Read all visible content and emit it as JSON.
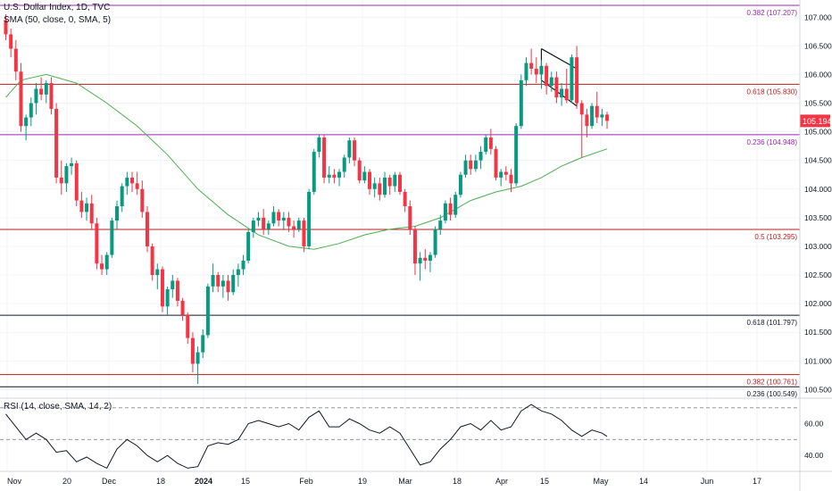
{
  "legend": {
    "symbol_line": "U.S. Dollar Index, 1D, TVC",
    "sma_line": "SMA (50, close, 0, SMA, 5)",
    "rsi_line": "RSI (14, close, SMA, 14, 2)"
  },
  "price_axis": {
    "ticks": [
      "107.000",
      "106.500",
      "106.000",
      "105.500",
      "105.000",
      "104.500",
      "104.000",
      "103.500",
      "103.000",
      "102.500",
      "102.000",
      "101.500",
      "101.000",
      "100.500"
    ],
    "current_price": "105.194",
    "current_price_color": "#f23645"
  },
  "rsi_axis": {
    "ticks": [
      "60.00",
      "40.00"
    ]
  },
  "time_axis": {
    "labels": [
      "Nov",
      "20",
      "Dec",
      "18",
      "2024",
      "15",
      "Feb",
      "19",
      "Mar",
      "18",
      "Apr",
      "15",
      "May",
      "14",
      "Jun",
      "17"
    ]
  },
  "fib_levels": [
    {
      "label": "0.382 (107.207)",
      "value": 107.207,
      "color": "#9c27b0"
    },
    {
      "label": "0.618 (105.830)",
      "value": 105.83,
      "color": "#b71c1c"
    },
    {
      "label": "0.236 (104.948)",
      "value": 104.948,
      "color": "#9c27b0"
    },
    {
      "label": "0.5 (103.295)",
      "value": 103.295,
      "color": "#b71c1c"
    },
    {
      "label": "0.618 (101.797)",
      "value": 101.797,
      "color": "#131722"
    },
    {
      "label": "0.382 (100.761)",
      "value": 100.761,
      "color": "#b71c1c"
    },
    {
      "label": "0.236 (100.549)",
      "value": 100.549,
      "color": "#131722"
    }
  ],
  "colors": {
    "up": "#089981",
    "down": "#f23645",
    "sma": "#4caf50",
    "rsi": "#131722"
  },
  "chart_data": {
    "type": "candlestick",
    "series_name": "U.S. Dollar Index, 1D, TVC",
    "x_start": "2023-10-30",
    "ohlc": [
      [
        106.95,
        107.05,
        106.6,
        106.7
      ],
      [
        106.7,
        106.8,
        106.3,
        106.45
      ],
      [
        106.45,
        106.6,
        105.9,
        106.05
      ],
      [
        106.05,
        106.2,
        105.0,
        105.1
      ],
      [
        105.1,
        105.3,
        104.85,
        105.25
      ],
      [
        105.25,
        105.6,
        105.1,
        105.5
      ],
      [
        105.5,
        105.85,
        105.3,
        105.75
      ],
      [
        105.75,
        105.95,
        105.55,
        105.65
      ],
      [
        105.65,
        105.9,
        105.5,
        105.85
      ],
      [
        105.85,
        105.95,
        105.3,
        105.4
      ],
      [
        105.4,
        105.5,
        104.1,
        104.2
      ],
      [
        104.2,
        104.5,
        103.9,
        104.1
      ],
      [
        104.1,
        104.45,
        103.95,
        104.4
      ],
      [
        104.4,
        104.55,
        104.25,
        104.45
      ],
      [
        104.45,
        104.5,
        103.7,
        103.8
      ],
      [
        103.8,
        103.95,
        103.5,
        103.6
      ],
      [
        103.6,
        103.85,
        103.45,
        103.75
      ],
      [
        103.75,
        103.9,
        103.3,
        103.4
      ],
      [
        103.4,
        103.5,
        102.6,
        102.7
      ],
      [
        102.7,
        102.85,
        102.5,
        102.6
      ],
      [
        102.6,
        102.9,
        102.5,
        102.85
      ],
      [
        102.85,
        103.5,
        102.8,
        103.45
      ],
      [
        103.45,
        103.8,
        103.3,
        103.7
      ],
      [
        103.7,
        104.1,
        103.6,
        104.05
      ],
      [
        104.05,
        104.3,
        103.9,
        104.2
      ],
      [
        104.2,
        104.3,
        103.95,
        104.1
      ],
      [
        104.1,
        104.3,
        103.9,
        104.0
      ],
      [
        104.0,
        104.15,
        103.5,
        103.6
      ],
      [
        103.6,
        103.7,
        102.9,
        103.0
      ],
      [
        103.0,
        103.05,
        102.4,
        102.5
      ],
      [
        102.5,
        102.7,
        102.25,
        102.6
      ],
      [
        102.6,
        102.65,
        101.85,
        101.95
      ],
      [
        101.95,
        102.3,
        101.8,
        102.25
      ],
      [
        102.25,
        102.5,
        102.1,
        102.4
      ],
      [
        102.4,
        102.45,
        101.95,
        102.05
      ],
      [
        102.05,
        102.1,
        101.7,
        101.8
      ],
      [
        101.8,
        101.85,
        101.3,
        101.4
      ],
      [
        101.4,
        101.5,
        100.8,
        100.95
      ],
      [
        100.95,
        101.25,
        100.6,
        101.15
      ],
      [
        101.15,
        101.55,
        101.05,
        101.45
      ],
      [
        101.45,
        102.35,
        101.4,
        102.3
      ],
      [
        102.3,
        102.7,
        102.2,
        102.5
      ],
      [
        102.5,
        102.55,
        102.2,
        102.3
      ],
      [
        102.3,
        102.5,
        102.1,
        102.4
      ],
      [
        102.4,
        102.5,
        102.05,
        102.2
      ],
      [
        102.2,
        102.6,
        102.15,
        102.5
      ],
      [
        102.5,
        102.7,
        102.3,
        102.6
      ],
      [
        102.6,
        102.85,
        102.5,
        102.75
      ],
      [
        102.75,
        103.3,
        102.7,
        103.25
      ],
      [
        103.25,
        103.5,
        103.15,
        103.45
      ],
      [
        103.45,
        103.6,
        103.35,
        103.5
      ],
      [
        103.5,
        103.65,
        103.2,
        103.3
      ],
      [
        103.3,
        103.45,
        103.2,
        103.4
      ],
      [
        103.4,
        103.7,
        103.35,
        103.6
      ],
      [
        103.6,
        103.65,
        103.35,
        103.45
      ],
      [
        103.45,
        103.6,
        103.3,
        103.5
      ],
      [
        103.5,
        103.6,
        103.25,
        103.35
      ],
      [
        103.35,
        103.45,
        103.15,
        103.3
      ],
      [
        103.3,
        103.5,
        103.25,
        103.45
      ],
      [
        103.45,
        103.5,
        102.9,
        103.0
      ],
      [
        103.0,
        104.0,
        102.95,
        103.95
      ],
      [
        103.95,
        104.7,
        103.9,
        104.65
      ],
      [
        104.65,
        104.95,
        104.55,
        104.9
      ],
      [
        104.9,
        104.95,
        104.1,
        104.2
      ],
      [
        104.2,
        104.4,
        104.1,
        104.25
      ],
      [
        104.25,
        104.35,
        104.1,
        104.2
      ],
      [
        104.2,
        104.35,
        104.05,
        104.3
      ],
      [
        104.3,
        104.6,
        104.2,
        104.55
      ],
      [
        104.55,
        104.9,
        104.45,
        104.85
      ],
      [
        104.85,
        104.9,
        104.4,
        104.5
      ],
      [
        104.5,
        104.55,
        104.1,
        104.15
      ],
      [
        104.15,
        104.4,
        104.1,
        104.3
      ],
      [
        104.3,
        104.35,
        103.9,
        104.0
      ],
      [
        104.0,
        104.2,
        103.85,
        104.1
      ],
      [
        104.1,
        104.2,
        103.8,
        103.9
      ],
      [
        103.9,
        104.3,
        103.85,
        104.2
      ],
      [
        104.2,
        104.25,
        103.9,
        104.05
      ],
      [
        104.05,
        104.3,
        103.95,
        104.25
      ],
      [
        104.25,
        104.3,
        103.9,
        103.95
      ],
      [
        103.95,
        104.0,
        103.6,
        103.7
      ],
      [
        103.7,
        103.8,
        103.2,
        103.3
      ],
      [
        103.3,
        103.35,
        102.5,
        102.7
      ],
      [
        102.7,
        102.9,
        102.4,
        102.8
      ],
      [
        102.8,
        102.95,
        102.6,
        102.75
      ],
      [
        102.75,
        102.9,
        102.55,
        102.85
      ],
      [
        102.85,
        103.35,
        102.8,
        103.3
      ],
      [
        103.3,
        103.55,
        103.2,
        103.45
      ],
      [
        103.45,
        103.8,
        103.4,
        103.75
      ],
      [
        103.75,
        103.85,
        103.45,
        103.55
      ],
      [
        103.55,
        103.95,
        103.5,
        103.9
      ],
      [
        103.9,
        104.3,
        103.85,
        104.25
      ],
      [
        104.25,
        104.6,
        104.2,
        104.5
      ],
      [
        104.5,
        104.6,
        104.25,
        104.35
      ],
      [
        104.35,
        104.6,
        104.3,
        104.5
      ],
      [
        104.5,
        104.75,
        104.35,
        104.65
      ],
      [
        104.65,
        104.95,
        104.6,
        104.9
      ],
      [
        104.9,
        105.05,
        104.6,
        104.7
      ],
      [
        104.7,
        104.75,
        104.15,
        104.2
      ],
      [
        104.2,
        104.35,
        104.05,
        104.3
      ],
      [
        104.3,
        104.4,
        104.15,
        104.25
      ],
      [
        104.25,
        104.35,
        103.95,
        104.1
      ],
      [
        104.1,
        105.15,
        104.05,
        105.1
      ],
      [
        105.1,
        106.0,
        105.05,
        105.9
      ],
      [
        105.9,
        106.3,
        105.8,
        106.2
      ],
      [
        106.2,
        106.45,
        106.0,
        106.1
      ],
      [
        106.1,
        106.3,
        105.85,
        106.0
      ],
      [
        106.0,
        106.25,
        105.75,
        106.15
      ],
      [
        106.15,
        106.2,
        105.65,
        105.8
      ],
      [
        105.8,
        106.05,
        105.7,
        105.95
      ],
      [
        105.95,
        106.05,
        105.5,
        105.6
      ],
      [
        105.6,
        105.85,
        105.45,
        105.75
      ],
      [
        105.75,
        106.1,
        105.5,
        105.55
      ],
      [
        105.55,
        106.35,
        105.5,
        106.3
      ],
      [
        106.3,
        106.5,
        105.4,
        105.5
      ],
      [
        105.5,
        105.55,
        104.55,
        105.3
      ],
      [
        105.3,
        105.4,
        104.9,
        105.1
      ],
      [
        105.1,
        105.5,
        105.05,
        105.45
      ],
      [
        105.45,
        105.7,
        105.15,
        105.25
      ],
      [
        105.25,
        105.4,
        105.1,
        105.3
      ],
      [
        105.3,
        105.35,
        105.05,
        105.19
      ]
    ],
    "sma50": [
      [
        0,
        105.6
      ],
      [
        3,
        105.9
      ],
      [
        8,
        106.0
      ],
      [
        14,
        105.85
      ],
      [
        20,
        105.5
      ],
      [
        26,
        105.1
      ],
      [
        32,
        104.6
      ],
      [
        38,
        104.0
      ],
      [
        44,
        103.55
      ],
      [
        50,
        103.2
      ],
      [
        56,
        103.0
      ],
      [
        61,
        102.95
      ],
      [
        66,
        103.05
      ],
      [
        71,
        103.2
      ],
      [
        76,
        103.3
      ],
      [
        81,
        103.35
      ],
      [
        86,
        103.5
      ],
      [
        92,
        103.8
      ],
      [
        97,
        103.95
      ],
      [
        102,
        104.05
      ],
      [
        106,
        104.2
      ],
      [
        110,
        104.4
      ],
      [
        114,
        104.55
      ],
      [
        119,
        104.7
      ]
    ],
    "rsi": [
      [
        0,
        66
      ],
      [
        2,
        58
      ],
      [
        4,
        50
      ],
      [
        6,
        54
      ],
      [
        8,
        50
      ],
      [
        10,
        42
      ],
      [
        12,
        43
      ],
      [
        14,
        36
      ],
      [
        16,
        39
      ],
      [
        18,
        35
      ],
      [
        20,
        32
      ],
      [
        22,
        44
      ],
      [
        24,
        50
      ],
      [
        26,
        46
      ],
      [
        28,
        40
      ],
      [
        30,
        36
      ],
      [
        32,
        40
      ],
      [
        34,
        35
      ],
      [
        36,
        32
      ],
      [
        38,
        33
      ],
      [
        40,
        46
      ],
      [
        42,
        48
      ],
      [
        44,
        47
      ],
      [
        46,
        50
      ],
      [
        48,
        60
      ],
      [
        50,
        62
      ],
      [
        52,
        60
      ],
      [
        54,
        58
      ],
      [
        56,
        60
      ],
      [
        58,
        56
      ],
      [
        60,
        64
      ],
      [
        62,
        68
      ],
      [
        64,
        58
      ],
      [
        66,
        58
      ],
      [
        68,
        63
      ],
      [
        70,
        60
      ],
      [
        72,
        56
      ],
      [
        74,
        54
      ],
      [
        76,
        58
      ],
      [
        78,
        54
      ],
      [
        80,
        44
      ],
      [
        82,
        34
      ],
      [
        84,
        36
      ],
      [
        86,
        44
      ],
      [
        88,
        50
      ],
      [
        90,
        58
      ],
      [
        92,
        60
      ],
      [
        94,
        56
      ],
      [
        96,
        62
      ],
      [
        98,
        56
      ],
      [
        100,
        58
      ],
      [
        102,
        68
      ],
      [
        104,
        72
      ],
      [
        106,
        68
      ],
      [
        108,
        66
      ],
      [
        110,
        62
      ],
      [
        112,
        56
      ],
      [
        114,
        52
      ],
      [
        116,
        56
      ],
      [
        118,
        54
      ],
      [
        119,
        52
      ]
    ],
    "pattern_channel": [
      {
        "x1": 106,
        "y1": 106.45,
        "x2": 113,
        "y2": 106.1
      },
      {
        "x1": 106,
        "y1": 105.9,
        "x2": 113,
        "y2": 105.45
      }
    ],
    "ylim": [
      100.35,
      107.3
    ],
    "rsi_ylim": [
      30,
      76
    ],
    "rsi_levels": [
      70,
      50,
      30
    ]
  }
}
